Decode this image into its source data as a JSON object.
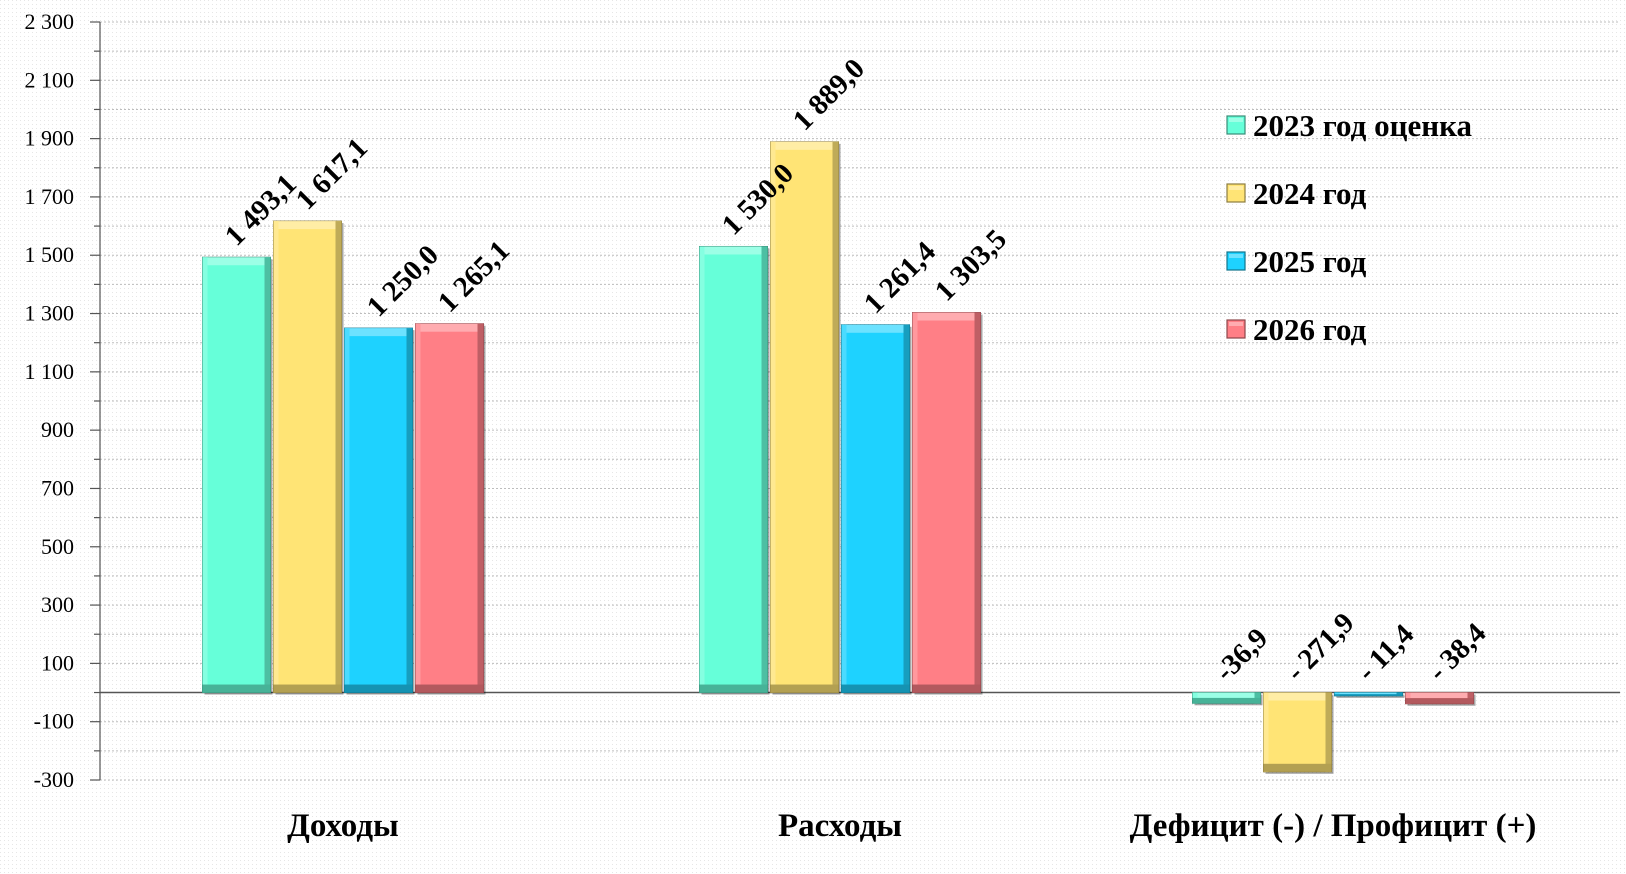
{
  "chart_data": {
    "type": "bar",
    "categories": [
      "Доходы",
      "Расходы",
      "Дефицит (-) / Профицит (+)"
    ],
    "series": [
      {
        "name": "2023 год оценка",
        "color": "#66FFD9",
        "values": [
          1493.1,
          1530.0,
          -36.9
        ],
        "labels": [
          "1 493,1",
          "1 530,0",
          "-36,9"
        ]
      },
      {
        "name": "2024 год",
        "color": "#FFE475",
        "values": [
          1617.1,
          1889.0,
          -271.9
        ],
        "labels": [
          "1 617,1",
          "1 889,0",
          "- 271,9"
        ]
      },
      {
        "name": "2025 год",
        "color": "#1ED2FF",
        "values": [
          1250.0,
          1261.4,
          -11.4
        ],
        "labels": [
          "1 250,0",
          "1 261,4",
          "- 11,4"
        ]
      },
      {
        "name": "2026 год",
        "color": "#FF7F86",
        "values": [
          1265.1,
          1303.5,
          -38.4
        ],
        "labels": [
          "1 265,1",
          "1 303,5",
          "- 38,4"
        ]
      }
    ],
    "yticks": [
      -300,
      -100,
      100,
      300,
      500,
      700,
      900,
      1100,
      1300,
      1500,
      1700,
      1900,
      2100,
      2300
    ],
    "ytick_labels": [
      "-300",
      "-100",
      "100",
      "300",
      "500",
      "700",
      "900",
      "1 100",
      "1 300",
      "1 500",
      "1 700",
      "1 900",
      "2 100",
      "2 300"
    ],
    "ylim": [
      -300,
      2300
    ],
    "grid": true,
    "legend_position": "right",
    "title": "",
    "xlabel": "",
    "ylabel": ""
  }
}
